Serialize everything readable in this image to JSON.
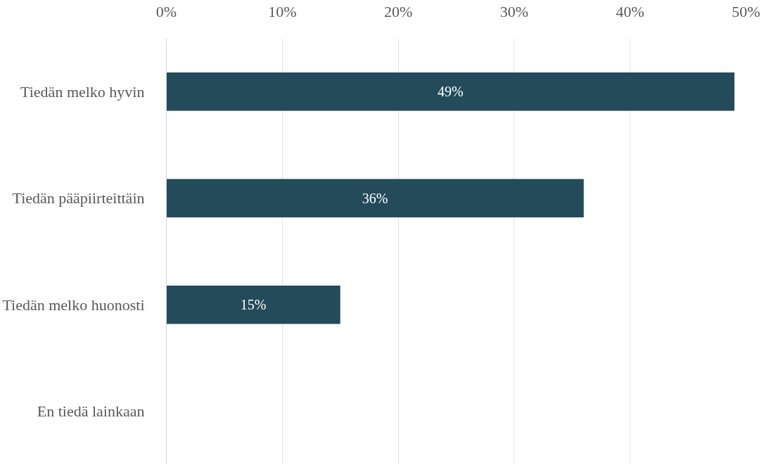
{
  "chart_data": {
    "type": "bar",
    "orientation": "horizontal",
    "categories": [
      "Tiedän melko hyvin",
      "Tiedän pääpiirteittäin",
      "Tiedän melko huonosti",
      "En tiedä lainkaan"
    ],
    "values": [
      49,
      36,
      15,
      0
    ],
    "value_labels": [
      "49%",
      "36%",
      "15%",
      null
    ],
    "color": "#234b5a",
    "xlim": [
      0,
      50
    ],
    "xticks": [
      {
        "value": 0,
        "label": "0%"
      },
      {
        "value": 10,
        "label": "10%"
      },
      {
        "value": 20,
        "label": "20%"
      },
      {
        "value": 30,
        "label": "30%"
      },
      {
        "value": 40,
        "label": "40%"
      },
      {
        "value": 50,
        "label": "50%"
      }
    ],
    "grid": "x"
  }
}
